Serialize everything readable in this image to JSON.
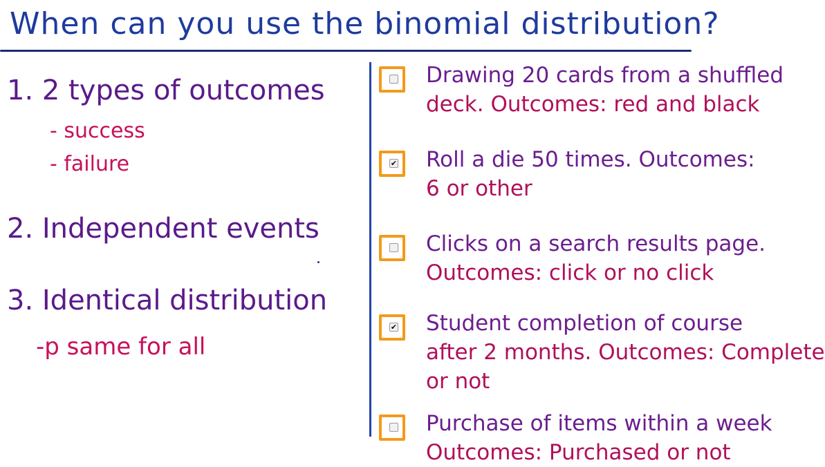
{
  "colors": {
    "title": "#1e3b9e",
    "rule": "#1b2f6e",
    "divider": "#2244aa",
    "numbered": "#5a1a8a",
    "sub": "#c8105a",
    "question": "#6b1e8e",
    "outcome": "#b0105a",
    "checkbox_border": "#f39a1a"
  },
  "title": "When can you use the binomial distribution?",
  "conditions": [
    {
      "label": "1. 2 types of outcomes",
      "subs": [
        "- success",
        "- failure"
      ]
    },
    {
      "label": "2. Independent events",
      "subs": []
    },
    {
      "label": "3. Identical distribution",
      "subs": [
        "-p same for all"
      ]
    }
  ],
  "questions": [
    {
      "checked": false,
      "line1": "Drawing 20 cards from a shuffled",
      "line2": "deck. Outcomes: red and black",
      "line3": ""
    },
    {
      "checked": true,
      "line1": "Roll a die 50 times. Outcomes:",
      "line2": "6 or other",
      "line3": ""
    },
    {
      "checked": false,
      "line1": "Clicks on a search results page.",
      "line2": "Outcomes: click or no click",
      "line3": ""
    },
    {
      "checked": true,
      "line1": "Student completion of course",
      "line2": "after 2 months. Outcomes: Complete",
      "line3": "or not"
    },
    {
      "checked": false,
      "line1": "Purchase of items within a week",
      "line2": "Outcomes: Purchased or not",
      "line3": ""
    }
  ],
  "checkmark_glyph": "✔"
}
